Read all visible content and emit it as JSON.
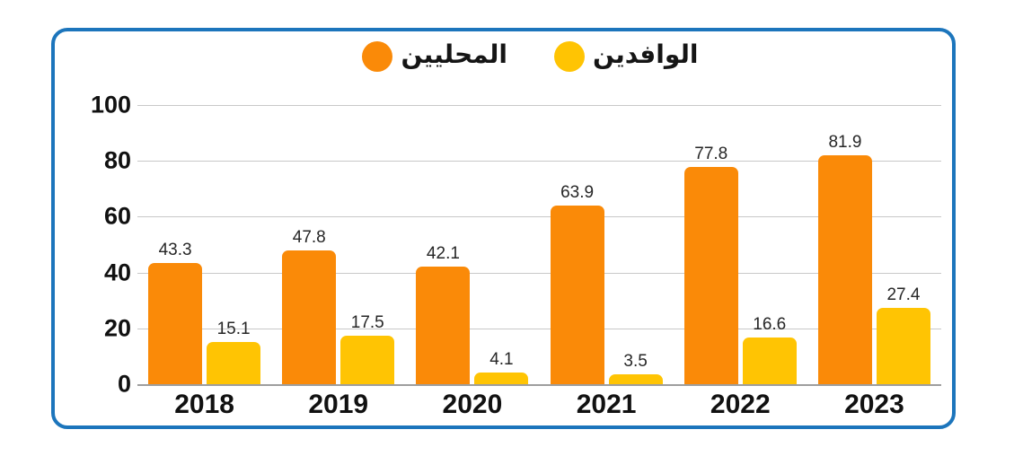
{
  "legend": {
    "items": [
      {
        "label": "المحليين",
        "color": "#FA8A08"
      },
      {
        "label": "الوافدين",
        "color": "#FFC403"
      }
    ]
  },
  "chart_data": {
    "type": "bar",
    "categories": [
      "2018",
      "2019",
      "2020",
      "2021",
      "2022",
      "2023"
    ],
    "series": [
      {
        "name": "المحليين",
        "color": "#FA8A08",
        "values": [
          43.3,
          47.8,
          42.1,
          63.9,
          77.8,
          81.9
        ]
      },
      {
        "name": "الوافدين",
        "color": "#FFC403",
        "values": [
          15.1,
          17.5,
          4.1,
          3.5,
          16.6,
          27.4
        ]
      }
    ],
    "title": "",
    "xlabel": "",
    "ylabel": "",
    "ylim": [
      0,
      100
    ],
    "yticks": [
      0,
      20,
      40,
      60,
      80,
      100
    ],
    "grid": true,
    "legend_position": "top-center",
    "value_labels": true
  },
  "colors": {
    "frame_border": "#1C75BC",
    "gridline": "#C8C8C8",
    "baseline": "#9E9E9E",
    "text": "#111111",
    "value_label_text": "#262626"
  }
}
